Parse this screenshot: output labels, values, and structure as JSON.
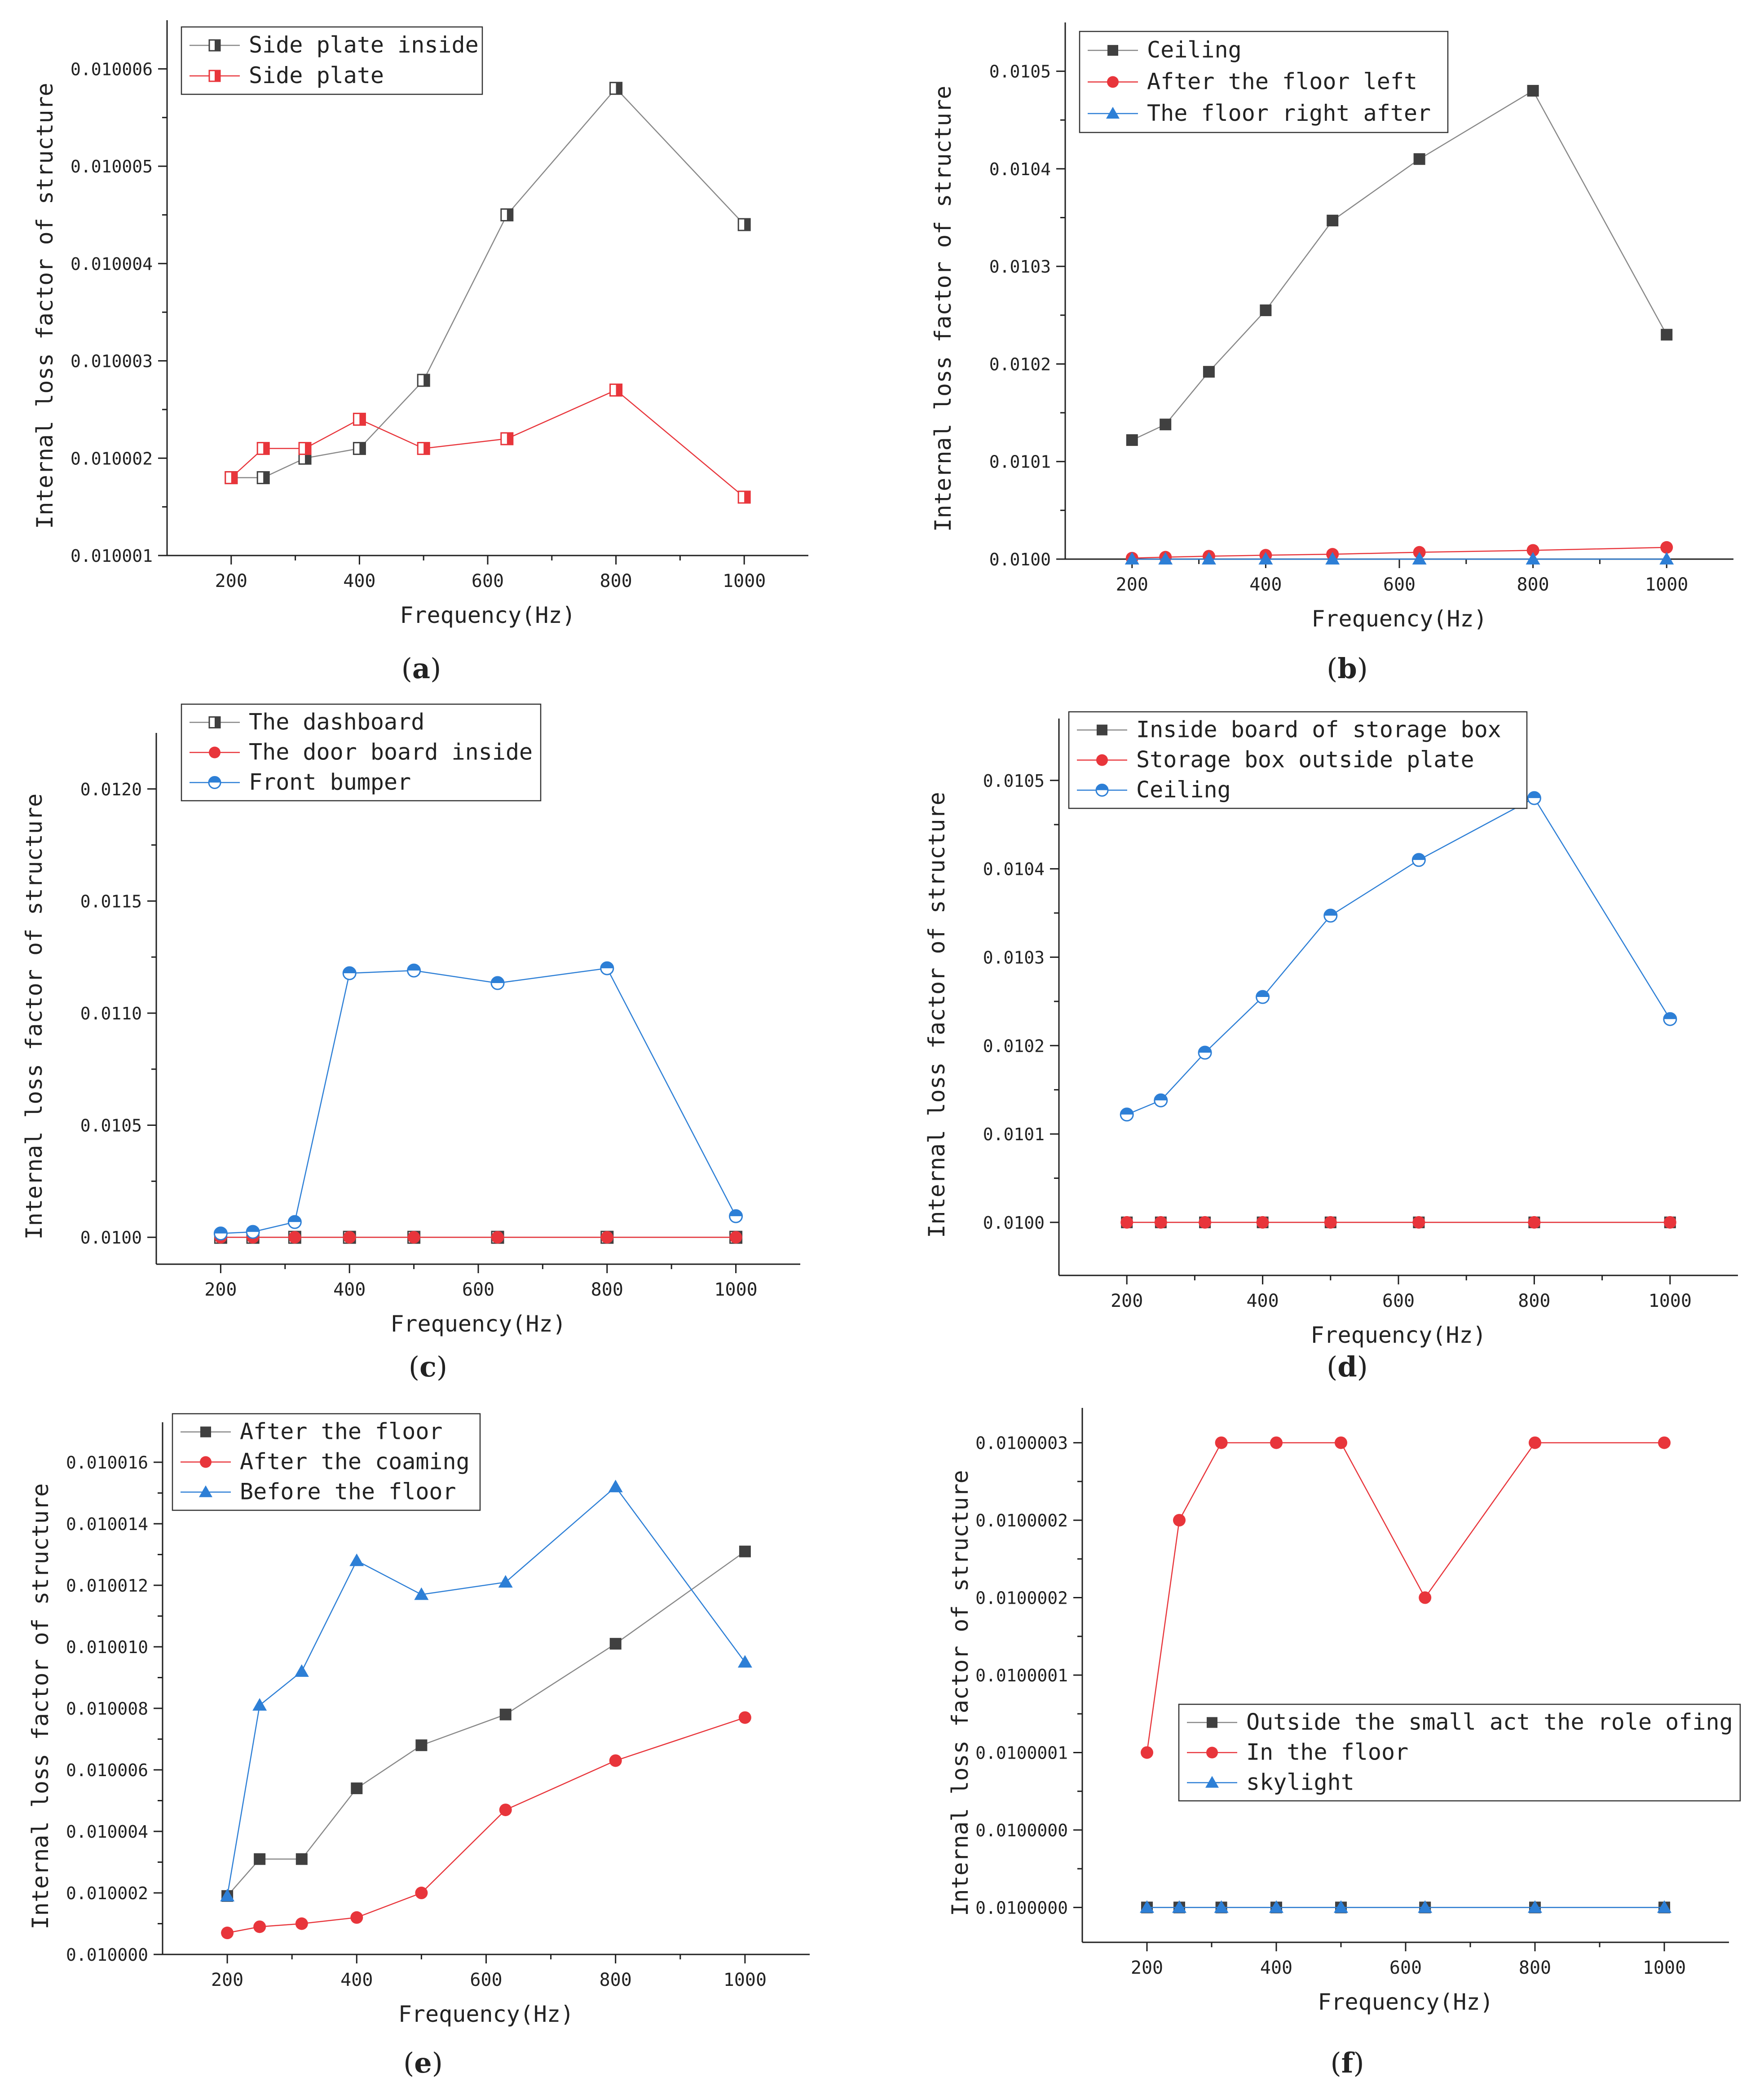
{
  "colors": {
    "dark": "#404040",
    "red": "#e8353b",
    "blue": "#2d7fd6",
    "gray_line": "#888888",
    "axis": "#1f1f1f"
  },
  "xlabel": "Frequency(Hz)",
  "ylabel": "Internal loss factor of structure",
  "chart_data": [
    {
      "panel": "(a)",
      "type": "line",
      "x": [
        200,
        250,
        315,
        400,
        500,
        630,
        800,
        1000
      ],
      "xlim": [
        100,
        1100
      ],
      "xticks": [
        200,
        400,
        600,
        800,
        1000
      ],
      "ylim": [
        0.010001,
        0.0100065
      ],
      "yticks": [
        0.010001,
        0.010002,
        0.010003,
        0.010004,
        0.010005,
        0.010006
      ],
      "ytick_labels": [
        "0.010001",
        "0.010002",
        "0.010003",
        "0.010004",
        "0.010005",
        "0.010006"
      ],
      "legend_position": "top-left",
      "series": [
        {
          "name": "Side plate inside",
          "color": "#404040",
          "line": "#888888",
          "marker": "half-square",
          "values": [
            0.0100018,
            0.0100018,
            0.010002,
            0.0100021,
            0.0100028,
            0.0100045,
            0.0100058,
            0.0100044
          ]
        },
        {
          "name": "Side plate",
          "color": "#e8353b",
          "line": "#e8353b",
          "marker": "half-square",
          "values": [
            0.0100018,
            0.0100021,
            0.0100021,
            0.0100024,
            0.0100021,
            0.0100022,
            0.0100027,
            0.0100016
          ]
        }
      ]
    },
    {
      "panel": "(b)",
      "type": "line",
      "x": [
        200,
        250,
        315,
        400,
        500,
        630,
        800,
        1000
      ],
      "xlim": [
        100,
        1100
      ],
      "xticks": [
        200,
        400,
        600,
        800,
        1000
      ],
      "ylim": [
        0.01,
        0.01055
      ],
      "yticks": [
        0.01,
        0.0101,
        0.0102,
        0.0103,
        0.0104,
        0.0105
      ],
      "ytick_labels": [
        "0.0100",
        "0.0101",
        "0.0102",
        "0.0103",
        "0.0104",
        "0.0105"
      ],
      "legend_position": "top-left",
      "series": [
        {
          "name": "Ceiling",
          "color": "#404040",
          "line": "#888888",
          "marker": "square",
          "values": [
            0.010122,
            0.010138,
            0.010192,
            0.010255,
            0.010347,
            0.01041,
            0.01048,
            0.01023
          ]
        },
        {
          "name": "After the floor left",
          "color": "#e8353b",
          "line": "#e8353b",
          "marker": "circle",
          "values": [
            0.010001,
            0.010002,
            0.010003,
            0.010004,
            0.010005,
            0.010007,
            0.010009,
            0.010012
          ]
        },
        {
          "name": "The floor right after",
          "color": "#2d7fd6",
          "line": "#2d7fd6",
          "marker": "triangle",
          "values": [
            0.01,
            0.01,
            0.01,
            0.01,
            0.01,
            0.01,
            0.01,
            0.01
          ]
        }
      ]
    },
    {
      "panel": "(c)",
      "type": "line",
      "x": [
        200,
        250,
        315,
        400,
        500,
        630,
        800,
        1000
      ],
      "xlim": [
        100,
        1100
      ],
      "xticks": [
        200,
        400,
        600,
        800,
        1000
      ],
      "ylim": [
        0.00988,
        0.01225
      ],
      "yticks": [
        0.01,
        0.0105,
        0.011,
        0.0115,
        0.012
      ],
      "ytick_labels": [
        "0.0100",
        "0.0105",
        "0.0110",
        "0.0115",
        "0.0120"
      ],
      "legend_position": "top-left",
      "series": [
        {
          "name": "The dashboard",
          "color": "#404040",
          "line": "#888888",
          "marker": "half-square",
          "values": [
            0.01,
            0.01,
            0.01,
            0.01,
            0.01,
            0.01,
            0.01,
            0.01
          ]
        },
        {
          "name": "The door board inside",
          "color": "#e8353b",
          "line": "#e8353b",
          "marker": "circle",
          "values": [
            0.01,
            0.01,
            0.01,
            0.01,
            0.01,
            0.01,
            0.01,
            0.01
          ]
        },
        {
          "name": "Front bumper",
          "color": "#2d7fd6",
          "line": "#2d7fd6",
          "marker": "half-circle",
          "values": [
            0.010017,
            0.010024,
            0.010068,
            0.011178,
            0.01119,
            0.011134,
            0.0112,
            0.010094
          ]
        }
      ]
    },
    {
      "panel": "(d)",
      "type": "line",
      "x": [
        200,
        250,
        315,
        400,
        500,
        630,
        800,
        1000
      ],
      "xlim": [
        100,
        1100
      ],
      "xticks": [
        200,
        400,
        600,
        800,
        1000
      ],
      "ylim": [
        0.00994,
        0.01057
      ],
      "yticks": [
        0.01,
        0.0101,
        0.0102,
        0.0103,
        0.0104,
        0.0105
      ],
      "ytick_labels": [
        "0.0100",
        "0.0101",
        "0.0102",
        "0.0103",
        "0.0104",
        "0.0105"
      ],
      "legend_position": "top-left",
      "series": [
        {
          "name": "Inside board of storage box",
          "color": "#404040",
          "line": "#888888",
          "marker": "square",
          "values": [
            0.01,
            0.01,
            0.01,
            0.01,
            0.01,
            0.01,
            0.01,
            0.01
          ]
        },
        {
          "name": "Storage box outside plate",
          "color": "#e8353b",
          "line": "#e8353b",
          "marker": "circle",
          "values": [
            0.01,
            0.01,
            0.01,
            0.01,
            0.01,
            0.01,
            0.01,
            0.01
          ]
        },
        {
          "name": "Ceiling",
          "color": "#2d7fd6",
          "line": "#2d7fd6",
          "marker": "half-circle",
          "values": [
            0.010122,
            0.010138,
            0.010192,
            0.010255,
            0.010347,
            0.01041,
            0.01048,
            0.01023
          ]
        }
      ]
    },
    {
      "panel": "(e)",
      "type": "line",
      "x": [
        200,
        250,
        315,
        400,
        500,
        630,
        800,
        1000
      ],
      "xlim": [
        100,
        1100
      ],
      "xticks": [
        200,
        400,
        600,
        800,
        1000
      ],
      "ylim": [
        0.01,
        0.0100173
      ],
      "yticks": [
        0.01,
        0.010002,
        0.010004,
        0.010006,
        0.010008,
        0.01001,
        0.010012,
        0.010014,
        0.010016
      ],
      "ytick_labels": [
        "0.010000",
        "0.010002",
        "0.010004",
        "0.010006",
        "0.010008",
        "0.010010",
        "0.010012",
        "0.010014",
        "0.010016"
      ],
      "legend_position": "top-left",
      "series": [
        {
          "name": "After the floor",
          "color": "#404040",
          "line": "#888888",
          "marker": "square",
          "values": [
            0.0100019,
            0.0100031,
            0.0100031,
            0.0100054,
            0.0100068,
            0.0100078,
            0.0100101,
            0.0100131
          ]
        },
        {
          "name": "After the coaming",
          "color": "#e8353b",
          "line": "#e8353b",
          "marker": "circle",
          "values": [
            0.0100007,
            0.0100009,
            0.010001,
            0.0100012,
            0.010002,
            0.0100047,
            0.0100063,
            0.0100077
          ]
        },
        {
          "name": "Before the floor",
          "color": "#2d7fd6",
          "line": "#2d7fd6",
          "marker": "triangle",
          "values": [
            0.0100019,
            0.0100081,
            0.0100092,
            0.0100128,
            0.0100117,
            0.0100121,
            0.0100152,
            0.0100095
          ]
        }
      ]
    },
    {
      "panel": "(f)",
      "type": "line",
      "x": [
        200,
        250,
        315,
        400,
        500,
        630,
        800,
        1000
      ],
      "xlim": [
        100,
        1100
      ],
      "xticks": [
        200,
        400,
        600,
        800,
        1000
      ],
      "ylim": [
        -0.45,
        6.45
      ],
      "yticks": [
        0,
        1,
        2,
        3,
        4,
        5,
        6
      ],
      "ytick_labels": [
        "0.0100000",
        "0.0100000",
        "0.0100001",
        "0.0100001",
        "0.0100002",
        "0.0100002",
        "0.0100003"
      ],
      "legend_position": "center-right",
      "series": [
        {
          "name": "Outside the small act the role ofing",
          "color": "#404040",
          "line": "#888888",
          "marker": "square",
          "values": [
            0,
            0,
            0,
            0,
            0,
            0,
            0,
            0
          ]
        },
        {
          "name": "In the floor",
          "color": "#e8353b",
          "line": "#e8353b",
          "marker": "circle",
          "values": [
            2,
            5,
            6,
            6,
            6,
            4,
            6,
            6
          ]
        },
        {
          "name": "skylight",
          "color": "#2d7fd6",
          "line": "#2d7fd6",
          "marker": "triangle",
          "values": [
            0,
            0,
            0,
            0,
            0,
            0,
            0,
            0
          ]
        }
      ]
    }
  ]
}
